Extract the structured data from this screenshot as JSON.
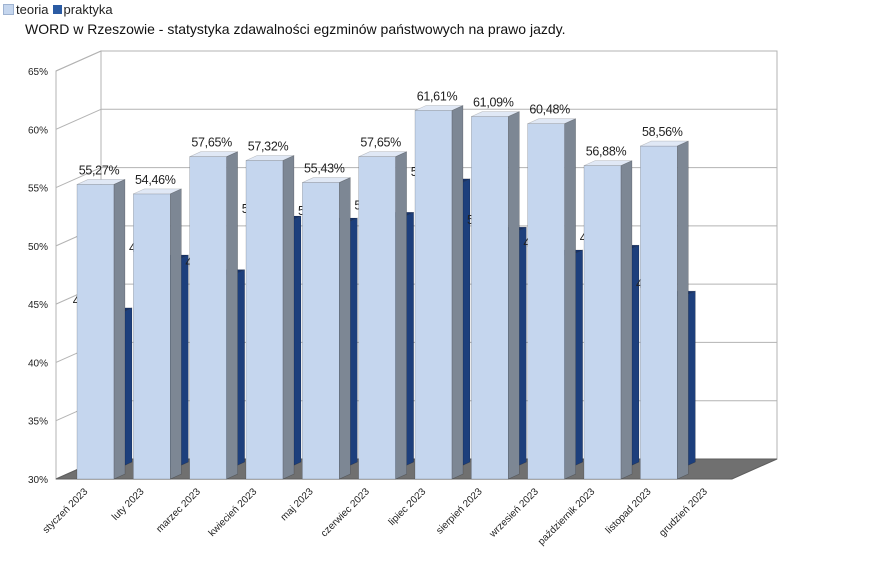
{
  "chart_data": {
    "type": "bar",
    "title": "WORD w Rzeszowie - statystyka zdawalności egzminów państwowych na prawo jazdy.",
    "categories": [
      "styczeń 2023",
      "luty 2023",
      "marzec 2023",
      "kwiecień 2023",
      "maj 2023",
      "czerwiec 2023",
      "lipiec 2023",
      "sierpień 2023",
      "wrzesień 2023",
      "październik 2023",
      "listopad 2023",
      "grudzień 2023"
    ],
    "series": [
      {
        "name": "teoria",
        "color": "#c5d6ee",
        "values": [
          55.27,
          54.46,
          57.65,
          57.32,
          55.43,
          57.65,
          61.61,
          61.09,
          60.48,
          56.88,
          58.56,
          null
        ],
        "labels": [
          "55,27%",
          "54,46%",
          "57,65%",
          "57,32%",
          "55,43%",
          "57,65%",
          "61,61%",
          "61,09%",
          "60,48%",
          "56,88%",
          "58,56%",
          ""
        ]
      },
      {
        "name": "praktyka",
        "color": "#2b5ba3",
        "values": [
          43.22,
          47.76,
          46.5,
          51.1,
          50.93,
          51.42,
          54.29,
          50.15,
          48.19,
          48.6,
          44.66,
          null
        ],
        "labels": [
          "43,22%",
          "47,76%",
          "46,50%",
          "51,10%",
          "50,93%",
          "51,42%",
          "54,29%",
          "50,15%",
          "48,19%",
          "48,60%",
          "44,66%",
          ""
        ]
      }
    ],
    "yticks": [
      "30%",
      "35%",
      "40%",
      "45%",
      "50%",
      "55%",
      "60%",
      "65%"
    ],
    "ylim": [
      30,
      65
    ],
    "grid": true,
    "legend": "top-left"
  }
}
